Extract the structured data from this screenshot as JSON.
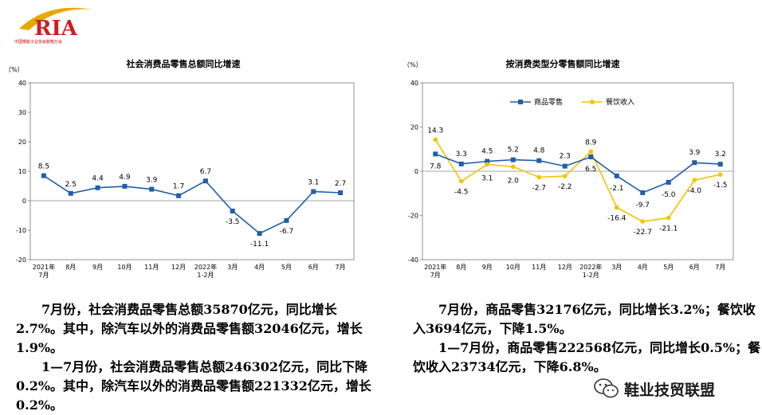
{
  "logo": {
    "text": "RIA",
    "subtitle": "中国橡胶工业协会胶鞋分会"
  },
  "chart_data": [
    {
      "type": "line",
      "title": "社会消费品零售总额同比增速",
      "unit": "（%）",
      "categories": [
        "2021年\n7月",
        "8月",
        "9月",
        "10月",
        "11月",
        "12月",
        "2022年\n1-2月",
        "3月",
        "4月",
        "5月",
        "6月",
        "7月"
      ],
      "series": [
        {
          "name": "",
          "values": [
            8.5,
            2.5,
            4.4,
            4.9,
            3.9,
            1.7,
            6.7,
            -3.5,
            -11.1,
            -6.7,
            3.1,
            2.7
          ],
          "color": "#1f5fa8"
        }
      ],
      "data_labels": [
        "8.5",
        "2.5",
        "4.4",
        "4.9",
        "3.9",
        "1.7",
        "6.7",
        "-3.5",
        "-11.1",
        "-6.7",
        "3.1",
        "2.7"
      ],
      "yticks": [
        "40",
        "30",
        "20",
        "10",
        "0",
        "-10",
        "-20"
      ],
      "ylim": [
        -20,
        40
      ],
      "grid": false,
      "legend": "none"
    },
    {
      "type": "line",
      "title": "按消费类型分零售额同比增速",
      "unit": "（%）",
      "categories": [
        "2021年\n7月",
        "8月",
        "9月",
        "10月",
        "11月",
        "12月",
        "2022年\n1-2月",
        "3月",
        "4月",
        "5月",
        "6月",
        "7月"
      ],
      "series": [
        {
          "name": "商品零售",
          "values": [
            7.8,
            3.3,
            4.5,
            5.2,
            4.8,
            2.3,
            6.5,
            -2.1,
            -9.7,
            -5.0,
            3.9,
            3.2
          ],
          "color": "#1f5fa8",
          "labels": [
            "7.8",
            "3.3",
            "4.5",
            "5.2",
            "4.8",
            "2.3",
            "6.5",
            "-2.1",
            "-9.7",
            "-5.0",
            "3.9",
            "3.2"
          ]
        },
        {
          "name": "餐饮收入",
          "values": [
            14.3,
            -4.5,
            3.1,
            2.0,
            -2.7,
            -2.2,
            8.9,
            -16.4,
            -22.7,
            -21.1,
            -4.0,
            -1.5
          ],
          "color": "#f2c400",
          "labels": [
            "14.3",
            "-4.5",
            "3.1",
            "2.0",
            "-2.7",
            "-2.2",
            "8.9",
            "-16.4",
            "-22.7",
            "-21.1",
            "-4.0",
            "-1.5"
          ]
        }
      ],
      "yticks": [
        "40",
        "20",
        "0",
        "-20",
        "-40"
      ],
      "ylim": [
        -40,
        40
      ],
      "grid": false,
      "legend": "top-left"
    }
  ],
  "text_left": [
    "7月份，社会消费品零售总额35870亿元，同比增长2.7%。其中，除汽车以外的消费品零售额32046亿元，增长1.9%。",
    "1—7月份，社会消费品零售总额246302亿元，同比下降0.2%。其中，除汽车以外的消费品零售额221332亿元，增长0.2%。"
  ],
  "text_right": [
    "7月份，商品零售32176亿元，同比增长3.2%；餐饮收入3694亿元，下降1.5%。",
    "1—7月份，商品零售222568亿元，同比增长0.5%；餐饮收入23734亿元，下降6.8%。"
  ],
  "watermark": "鞋业技贸联盟",
  "colors": {
    "blue": "#1f5fa8",
    "yellow": "#f2c400",
    "logo_red": "#cc1f1f",
    "logo_gold": "#e8a800"
  }
}
